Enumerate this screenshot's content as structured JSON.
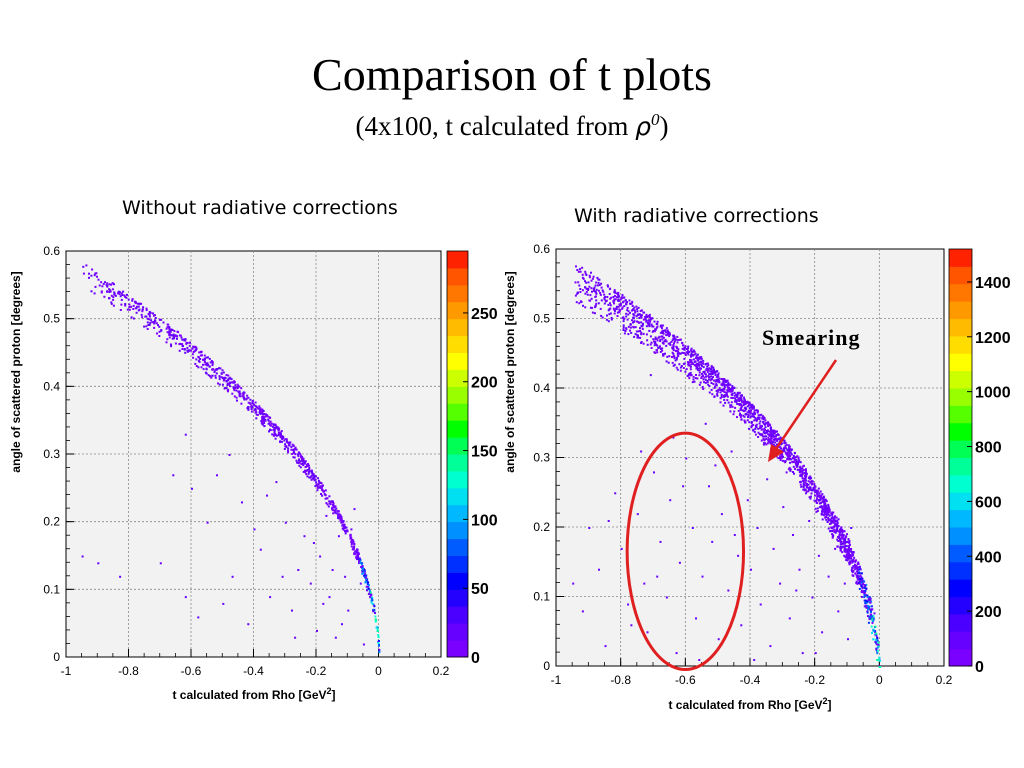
{
  "slide": {
    "title": "Comparison of t plots",
    "subtitle_prefix": "(4x100, t calculated from ",
    "subtitle_rho": "ρ",
    "subtitle_sup": "0",
    "subtitle_suffix": ")"
  },
  "chart_data": [
    {
      "type": "heatmap",
      "title": "Without radiative corrections",
      "xlabel": "t calculated from Rho [GeV",
      "xlabel_sup": "2",
      "xlabel_end": "]",
      "ylabel": "angle of scattered proton [degrees]",
      "xlim": [
        -1,
        0.2
      ],
      "ylim": [
        0,
        0.6
      ],
      "x_ticks": [
        "-1",
        "-0.8",
        "-0.6",
        "-0.4",
        "-0.2",
        "0",
        "0.2"
      ],
      "y_ticks": [
        "0",
        "0.1",
        "0.2",
        "0.3",
        "0.4",
        "0.5",
        "0.6"
      ],
      "grid": true,
      "colorbar": {
        "labels": [
          "0",
          "50",
          "100",
          "150",
          "200",
          "250"
        ],
        "values": [
          0,
          50,
          100,
          150,
          200,
          250
        ],
        "max": 295
      },
      "band": {
        "t_start": -0.95,
        "t_end": 0.0,
        "relation": "angle ≈ 0.6·sqrt(-t)",
        "spread": 0.018
      },
      "scatter_points": [
        [
          -0.95,
          0.15
        ],
        [
          -0.9,
          0.14
        ],
        [
          -0.83,
          0.12
        ],
        [
          -0.7,
          0.14
        ],
        [
          -0.66,
          0.27
        ],
        [
          -0.62,
          0.09
        ],
        [
          -0.6,
          0.25
        ],
        [
          -0.58,
          0.06
        ],
        [
          -0.55,
          0.2
        ],
        [
          -0.5,
          0.08
        ],
        [
          -0.47,
          0.12
        ],
        [
          -0.44,
          0.23
        ],
        [
          -0.42,
          0.05
        ],
        [
          -0.4,
          0.19
        ],
        [
          -0.38,
          0.16
        ],
        [
          -0.35,
          0.09
        ],
        [
          -0.33,
          0.26
        ],
        [
          -0.3,
          0.2
        ],
        [
          -0.28,
          0.07
        ],
        [
          -0.26,
          0.13
        ],
        [
          -0.24,
          0.18
        ],
        [
          -0.22,
          0.11
        ],
        [
          -0.2,
          0.04
        ],
        [
          -0.19,
          0.15
        ],
        [
          -0.17,
          0.21
        ],
        [
          -0.16,
          0.09
        ],
        [
          -0.14,
          0.03
        ],
        [
          -0.13,
          0.18
        ],
        [
          -0.11,
          0.12
        ],
        [
          -0.1,
          0.07
        ],
        [
          -0.08,
          0.22
        ],
        [
          -0.07,
          0.16
        ],
        [
          -0.05,
          0.02
        ],
        [
          -0.04,
          0.1
        ],
        [
          -0.62,
          0.33
        ],
        [
          -0.52,
          0.27
        ],
        [
          -0.48,
          0.3
        ],
        [
          -0.36,
          0.24
        ],
        [
          -0.31,
          0.12
        ],
        [
          -0.27,
          0.03
        ],
        [
          -0.21,
          0.17
        ],
        [
          -0.18,
          0.08
        ],
        [
          -0.15,
          0.13
        ],
        [
          -0.12,
          0.05
        ],
        [
          -0.09,
          0.19
        ],
        [
          -0.06,
          0.11
        ]
      ]
    },
    {
      "type": "heatmap",
      "title": "With radiative corrections",
      "xlabel": "t calculated from Rho [GeV",
      "xlabel_sup": "2",
      "xlabel_end": "]",
      "ylabel": "angle of scattered proton [degrees]",
      "xlim": [
        -1,
        0.2
      ],
      "ylim": [
        0,
        0.6
      ],
      "x_ticks": [
        "-1",
        "-0.8",
        "-0.6",
        "-0.4",
        "-0.2",
        "0",
        "0.2"
      ],
      "y_ticks": [
        "0",
        "0.1",
        "0.2",
        "0.3",
        "0.4",
        "0.5",
        "0.6"
      ],
      "grid": true,
      "colorbar": {
        "labels": [
          "0",
          "200",
          "400",
          "600",
          "800",
          "1000",
          "1200",
          "1400"
        ],
        "values": [
          0,
          200,
          400,
          600,
          800,
          1000,
          1200,
          1400
        ],
        "max": 1520
      },
      "band": {
        "t_start": -0.95,
        "t_end": 0.0,
        "relation": "angle ≈ 0.6·sqrt(-t)",
        "spread": 0.03
      },
      "annotation": {
        "text": "Smearing",
        "circle_center": [
          -0.6,
          0.165
        ],
        "circle_radius": [
          0.18,
          0.17
        ]
      },
      "scatter_points": [
        [
          -0.92,
          0.08
        ],
        [
          -0.9,
          0.2
        ],
        [
          -0.87,
          0.14
        ],
        [
          -0.85,
          0.03
        ],
        [
          -0.82,
          0.25
        ],
        [
          -0.8,
          0.17
        ],
        [
          -0.78,
          0.09
        ],
        [
          -0.75,
          0.22
        ],
        [
          -0.73,
          0.12
        ],
        [
          -0.72,
          0.05
        ],
        [
          -0.7,
          0.28
        ],
        [
          -0.68,
          0.18
        ],
        [
          -0.66,
          0.1
        ],
        [
          -0.65,
          0.24
        ],
        [
          -0.63,
          0.02
        ],
        [
          -0.62,
          0.15
        ],
        [
          -0.6,
          0.3
        ],
        [
          -0.58,
          0.2
        ],
        [
          -0.57,
          0.07
        ],
        [
          -0.55,
          0.13
        ],
        [
          -0.53,
          0.26
        ],
        [
          -0.52,
          0.18
        ],
        [
          -0.5,
          0.04
        ],
        [
          -0.49,
          0.22
        ],
        [
          -0.47,
          0.11
        ],
        [
          -0.46,
          0.31
        ],
        [
          -0.44,
          0.16
        ],
        [
          -0.43,
          0.06
        ],
        [
          -0.41,
          0.24
        ],
        [
          -0.4,
          0.14
        ],
        [
          -0.38,
          0.2
        ],
        [
          -0.37,
          0.09
        ],
        [
          -0.35,
          0.27
        ],
        [
          -0.34,
          0.03
        ],
        [
          -0.33,
          0.17
        ],
        [
          -0.31,
          0.12
        ],
        [
          -0.3,
          0.23
        ],
        [
          -0.28,
          0.07
        ],
        [
          -0.27,
          0.19
        ],
        [
          -0.25,
          0.14
        ],
        [
          -0.24,
          0.02
        ],
        [
          -0.22,
          0.21
        ],
        [
          -0.21,
          0.1
        ],
        [
          -0.19,
          0.16
        ],
        [
          -0.18,
          0.05
        ],
        [
          -0.16,
          0.13
        ],
        [
          -0.15,
          0.22
        ],
        [
          -0.13,
          0.08
        ],
        [
          -0.12,
          0.18
        ],
        [
          -0.1,
          0.04
        ],
        [
          -0.95,
          0.12
        ],
        [
          -0.84,
          0.21
        ],
        [
          -0.77,
          0.06
        ],
        [
          -0.69,
          0.13
        ],
        [
          -0.61,
          0.26
        ],
        [
          -0.56,
          0.01
        ],
        [
          -0.51,
          0.29
        ],
        [
          -0.45,
          0.19
        ],
        [
          -0.39,
          0.01
        ],
        [
          -0.36,
          0.32
        ],
        [
          -0.29,
          0.28
        ],
        [
          -0.26,
          0.11
        ],
        [
          -0.23,
          0.25
        ],
        [
          -0.2,
          0.02
        ],
        [
          -0.17,
          0.24
        ],
        [
          -0.14,
          0.17
        ],
        [
          -0.11,
          0.12
        ],
        [
          -0.09,
          0.2
        ],
        [
          -0.74,
          0.31
        ],
        [
          -0.64,
          0.33
        ],
        [
          -0.54,
          0.35
        ],
        [
          -0.48,
          0.38
        ],
        [
          -0.42,
          0.36
        ],
        [
          -0.58,
          0.41
        ],
        [
          -0.67,
          0.45
        ],
        [
          -0.79,
          0.48
        ],
        [
          -0.88,
          0.52
        ],
        [
          -0.71,
          0.42
        ]
      ]
    }
  ]
}
